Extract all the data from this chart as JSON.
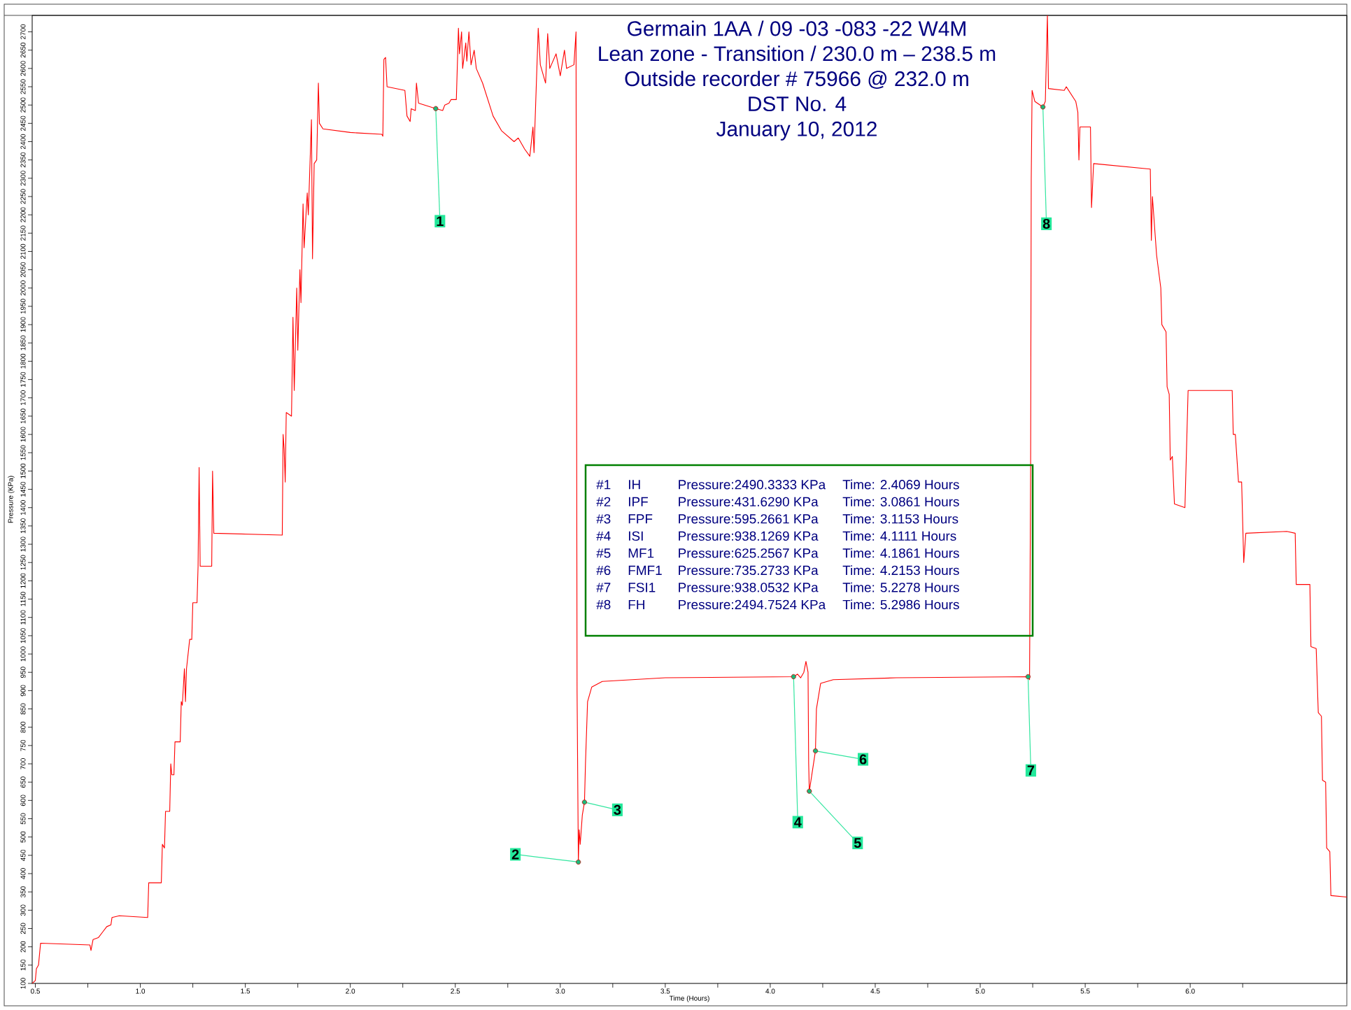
{
  "chart_data": {
    "type": "line",
    "title": "Germain 1AA / 09 -03 -083 -22 W4M",
    "subtitle": "Lean zone - Transition / 230.0 m – 238.5 m",
    "xlabel": "Time (Hours)",
    "ylabel": "Pressure (KPa)",
    "xlim": [
      0.485,
      6.746
    ],
    "ylim": [
      100,
      2745
    ],
    "xticks": [
      {
        "value": 0.5,
        "label": "0.5"
      },
      {
        "value": 0.75,
        "label": null
      },
      {
        "value": 1.0,
        "label": "1.0"
      },
      {
        "value": 1.25,
        "label": null
      },
      {
        "value": 1.5,
        "label": "1.5"
      },
      {
        "value": 1.75,
        "label": null
      },
      {
        "value": 2.0,
        "label": "2.0"
      },
      {
        "value": 2.25,
        "label": null
      },
      {
        "value": 2.5,
        "label": "2.5"
      },
      {
        "value": 2.75,
        "label": null
      },
      {
        "value": 3.0,
        "label": "3.0"
      },
      {
        "value": 3.25,
        "label": null
      },
      {
        "value": 3.5,
        "label": "3.5"
      },
      {
        "value": 3.75,
        "label": null
      },
      {
        "value": 4.0,
        "label": "4.0"
      },
      {
        "value": 4.25,
        "label": null
      },
      {
        "value": 4.5,
        "label": "4.5"
      },
      {
        "value": 4.75,
        "label": null
      },
      {
        "value": 5.0,
        "label": "5.0"
      },
      {
        "value": 5.25,
        "label": null
      },
      {
        "value": 5.5,
        "label": "5.5"
      },
      {
        "value": 5.75,
        "label": null
      },
      {
        "value": 6.0,
        "label": "6.0"
      },
      {
        "value": 6.25,
        "label": null
      }
    ],
    "yticks": [
      100,
      150,
      200,
      250,
      300,
      350,
      400,
      450,
      500,
      550,
      600,
      650,
      700,
      750,
      800,
      850,
      900,
      950,
      1000,
      1050,
      1100,
      1150,
      1200,
      1250,
      1300,
      1350,
      1400,
      1450,
      1500,
      1550,
      1600,
      1650,
      1700,
      1750,
      1800,
      1850,
      1900,
      1950,
      2000,
      2050,
      2100,
      2150,
      2200,
      2250,
      2300,
      2350,
      2400,
      2450,
      2500,
      2550,
      2600,
      2650,
      2700
    ],
    "x": [
      0.485,
      0.5,
      0.505,
      0.515,
      0.525,
      0.76,
      0.765,
      0.775,
      0.8,
      0.82,
      0.84,
      0.86,
      0.865,
      0.9,
      1.035,
      1.04,
      1.1,
      1.105,
      1.115,
      1.12,
      1.14,
      1.145,
      1.15,
      1.16,
      1.165,
      1.19,
      1.195,
      1.2,
      1.21,
      1.215,
      1.22,
      1.235,
      1.245,
      1.25,
      1.27,
      1.275,
      1.28,
      1.285,
      1.34,
      1.344,
      1.35,
      1.676,
      1.68,
      1.685,
      1.69,
      1.695,
      1.72,
      1.727,
      1.733,
      1.745,
      1.75,
      1.76,
      1.765,
      1.775,
      1.78,
      1.795,
      1.8,
      1.815,
      1.82,
      1.828,
      1.84,
      1.848,
      1.853,
      1.87,
      2.0,
      2.15,
      2.155,
      2.16,
      2.168,
      2.175,
      2.26,
      2.27,
      2.285,
      2.29,
      2.31,
      2.315,
      2.325,
      2.4069,
      2.44,
      2.45,
      2.47,
      2.48,
      2.505,
      2.515,
      2.52,
      2.53,
      2.535,
      2.55,
      2.555,
      2.565,
      2.575,
      2.59,
      2.6,
      2.63,
      2.68,
      2.72,
      2.78,
      2.8,
      2.83,
      2.855,
      2.87,
      2.875,
      2.895,
      2.905,
      2.93,
      2.94,
      2.95,
      2.98,
      3.0,
      3.02,
      3.03,
      3.065,
      3.075,
      3.08,
      3.0861,
      3.09,
      3.095,
      3.105,
      3.1153,
      3.12,
      3.13,
      3.15,
      3.2,
      3.5,
      4.1111,
      4.13,
      4.145,
      4.16,
      4.17,
      4.18,
      4.183,
      4.1861,
      4.2153,
      4.22,
      4.24,
      4.3,
      4.6,
      5.2278,
      5.235,
      5.24,
      5.243,
      5.247,
      5.26,
      5.2986,
      5.31,
      5.32,
      5.325,
      5.4,
      5.41,
      5.455,
      5.465,
      5.47,
      5.475,
      5.525,
      5.53,
      5.54,
      5.81,
      5.815,
      5.82,
      5.84,
      5.86,
      5.865,
      5.885,
      5.89,
      5.9,
      5.905,
      5.915,
      5.925,
      5.975,
      5.99,
      6.2,
      6.205,
      6.215,
      6.23,
      6.245,
      6.255,
      6.265,
      6.46,
      6.5,
      6.505,
      6.57,
      6.575,
      6.6,
      6.61,
      6.625,
      6.63,
      6.645,
      6.65,
      6.665,
      6.67,
      6.746
    ],
    "series": [
      {
        "color": "#ff0000",
        "values": [
          100,
          108,
          140,
          150,
          210,
          205,
          190,
          220,
          225,
          240,
          255,
          260,
          280,
          285,
          280,
          375,
          375,
          480,
          470,
          570,
          570,
          700,
          670,
          670,
          760,
          760,
          870,
          860,
          960,
          870,
          960,
          1040,
          1040,
          1140,
          1140,
          1240,
          1510,
          1240,
          1240,
          1500,
          1330,
          1325,
          1600,
          1560,
          1470,
          1660,
          1650,
          1920,
          1720,
          2000,
          1830,
          2050,
          1960,
          2230,
          2110,
          2260,
          2200,
          2460,
          2080,
          2340,
          2350,
          2560,
          2450,
          2435,
          2425,
          2420,
          2415,
          2625,
          2630,
          2550,
          2540,
          2470,
          2455,
          2490,
          2485,
          2560,
          2505,
          2490.3333,
          2485,
          2500,
          2505,
          2515,
          2515,
          2710,
          2640,
          2700,
          2600,
          2670,
          2620,
          2700,
          2610,
          2650,
          2600,
          2560,
          2470,
          2430,
          2400,
          2410,
          2380,
          2360,
          2440,
          2370,
          2710,
          2610,
          2560,
          2695,
          2600,
          2640,
          2580,
          2650,
          2600,
          2610,
          2700,
          900,
          431.629,
          520,
          480,
          560,
          595.2661,
          700,
          870,
          910,
          925,
          935,
          938.1269,
          945,
          935,
          950,
          980,
          950,
          700,
          625.2567,
          735.2733,
          850,
          920,
          930,
          935,
          938.0532,
          930,
          1500,
          2300,
          2540,
          2510,
          2494.7524,
          2510,
          2745,
          2545,
          2540,
          2550,
          2510,
          2480,
          2350,
          2440,
          2440,
          2220,
          2340,
          2325,
          2130,
          2250,
          2090,
          2000,
          1900,
          1880,
          1730,
          1710,
          1530,
          1540,
          1410,
          1400,
          1720,
          1720,
          1600,
          1600,
          1470,
          1470,
          1250,
          1330,
          1335,
          1330,
          1190,
          1190,
          1020,
          1015,
          840,
          830,
          655,
          650,
          470,
          460,
          340,
          336
        ]
      }
    ],
    "annotations": [
      {
        "text": "1",
        "x": 2.4069,
        "y": 2490.3333
      },
      {
        "text": "2",
        "x": 3.0861,
        "y": 431.629
      },
      {
        "text": "3",
        "x": 3.1153,
        "y": 595.2661
      },
      {
        "text": "4",
        "x": 4.1111,
        "y": 938.1269
      },
      {
        "text": "5",
        "x": 4.1861,
        "y": 625.2567
      },
      {
        "text": "6",
        "x": 4.2153,
        "y": 735.2733
      },
      {
        "text": "7",
        "x": 5.2278,
        "y": 938.0532
      },
      {
        "text": "8",
        "x": 5.2986,
        "y": 2494.7524
      },
      "Outside recorder # 75966 @ 232.0 m",
      "DST No. 4",
      "January 10, 2012",
      "#1",
      "IH",
      "Pressure:2490.3333 KPa",
      "Time: 2.4069 Hours",
      "#2",
      "IPF",
      "Pressure:431.6290 KPa",
      "Time: 3.0861 Hours",
      "#3",
      "FPF",
      "Pressure:595.2661 KPa",
      "Time: 3.1153 Hours",
      "#4",
      "ISI",
      "Pressure:938.1269 KPa",
      "Time: 4.1111 Hours",
      "#5",
      "MF1",
      "Pressure:625.2567 KPa",
      "Time: 4.1861 Hours",
      "#6",
      "FMF1",
      "Pressure:735.2733 KPa",
      "Time: 4.2153 Hours",
      "#7",
      "FSI1",
      "Pressure:938.0532 KPa",
      "Time: 5.2278 Hours",
      "#8",
      "FH",
      "Pressure:2494.7524 KPa",
      "Time: 5.2986 Hours"
    ]
  }
}
